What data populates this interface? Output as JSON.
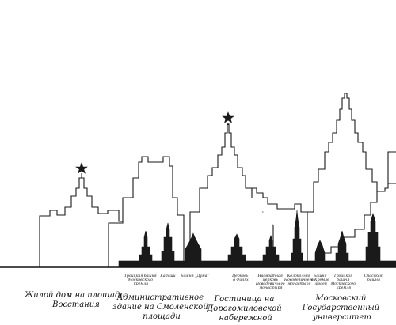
{
  "buildings": {
    "vosstaniya": {
      "line1": "Жилой дом на площади",
      "line2": "Восстания"
    },
    "smolenskaya": {
      "line1": "Административное",
      "line2": "здание на Смоленской",
      "line3": "площади"
    },
    "dorogomilovskaya": {
      "line1": "Гостиница на",
      "line2": "Дорогомиловской",
      "line3": "набережной"
    },
    "university": {
      "line1": "Московский",
      "line2": "Государственный",
      "line3": "университет"
    }
  },
  "landmarks": {
    "troitskaya": {
      "line1": "Троицкая башня",
      "line2": "Московского",
      "line3": "кремля"
    },
    "kadashi": {
      "line1": "Кадаши"
    },
    "bashnya_duma": {
      "line1": "Башня „Дума“"
    },
    "tserkov_fili": {
      "line1": "Церковь",
      "line2": "в Филях"
    },
    "nadvratnaya": {
      "line1": "Надвратная",
      "line2": "церковь",
      "line3": "Новодевичьего",
      "line4": "монастыря"
    },
    "kolokolnya": {
      "line1": "Колокольня",
      "line2": "Новодевичьего",
      "line3": "монастыря"
    },
    "bashnya_kremlin": {
      "line1": "Башня",
      "line2": "в Кремле",
      "line3": "людей"
    },
    "troitskaya2": {
      "line1": "Троицкая",
      "line2": "башня",
      "line3": "Московского",
      "line4": "кремля"
    },
    "spasskaya": {
      "line1": "Спасская",
      "line2": "башня"
    }
  },
  "icons": {
    "star": "star-icon"
  }
}
